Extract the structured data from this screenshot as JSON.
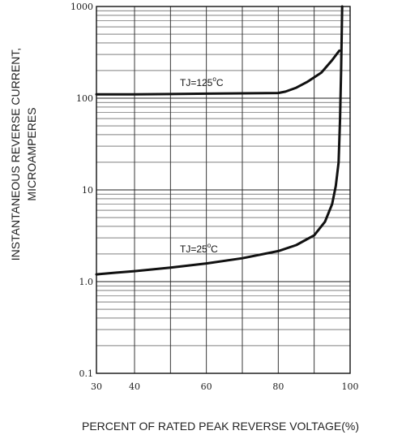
{
  "chart_data": {
    "type": "line",
    "title": "",
    "xlabel": "PERCENT OF RATED PEAK REVERSE VOLTAGE(%)",
    "ylabel_line1": "INSTANTANEOUS REVERSE CURRENT,",
    "ylabel_line2": "MICROAMPERES",
    "xlim": [
      30,
      100
    ],
    "ylim": [
      0.1,
      1000
    ],
    "y_scale": "log",
    "grid": true,
    "x_ticks": [
      30,
      40,
      60,
      80,
      100
    ],
    "x_tick_labels": [
      "30",
      "40",
      "60",
      "80",
      "100"
    ],
    "y_ticks": [
      0.1,
      1,
      10,
      100,
      1000
    ],
    "y_tick_labels": [
      "0.1",
      "1.0",
      "10",
      "100",
      "1000"
    ],
    "series": [
      {
        "name": "TJ=125°C",
        "label_main": "TJ=125",
        "label_sup": "o",
        "label_tail": "C",
        "x": [
          30,
          40,
          50,
          60,
          70,
          80,
          82,
          85,
          88,
          92,
          95,
          97
        ],
        "y": [
          110,
          110,
          111,
          112,
          113,
          114,
          118,
          130,
          150,
          190,
          260,
          330
        ]
      },
      {
        "name": "TJ=25°C",
        "label_main": "TJ=25",
        "label_sup": "o",
        "label_tail": "C",
        "x": [
          30,
          35,
          40,
          50,
          60,
          70,
          80,
          85,
          90,
          93,
          95,
          96,
          96.8,
          97.2,
          97.5,
          97.7,
          97.8
        ],
        "y": [
          1.2,
          1.25,
          1.3,
          1.42,
          1.58,
          1.8,
          2.15,
          2.5,
          3.2,
          4.5,
          7,
          11,
          20,
          60,
          200,
          600,
          1000
        ]
      }
    ]
  }
}
